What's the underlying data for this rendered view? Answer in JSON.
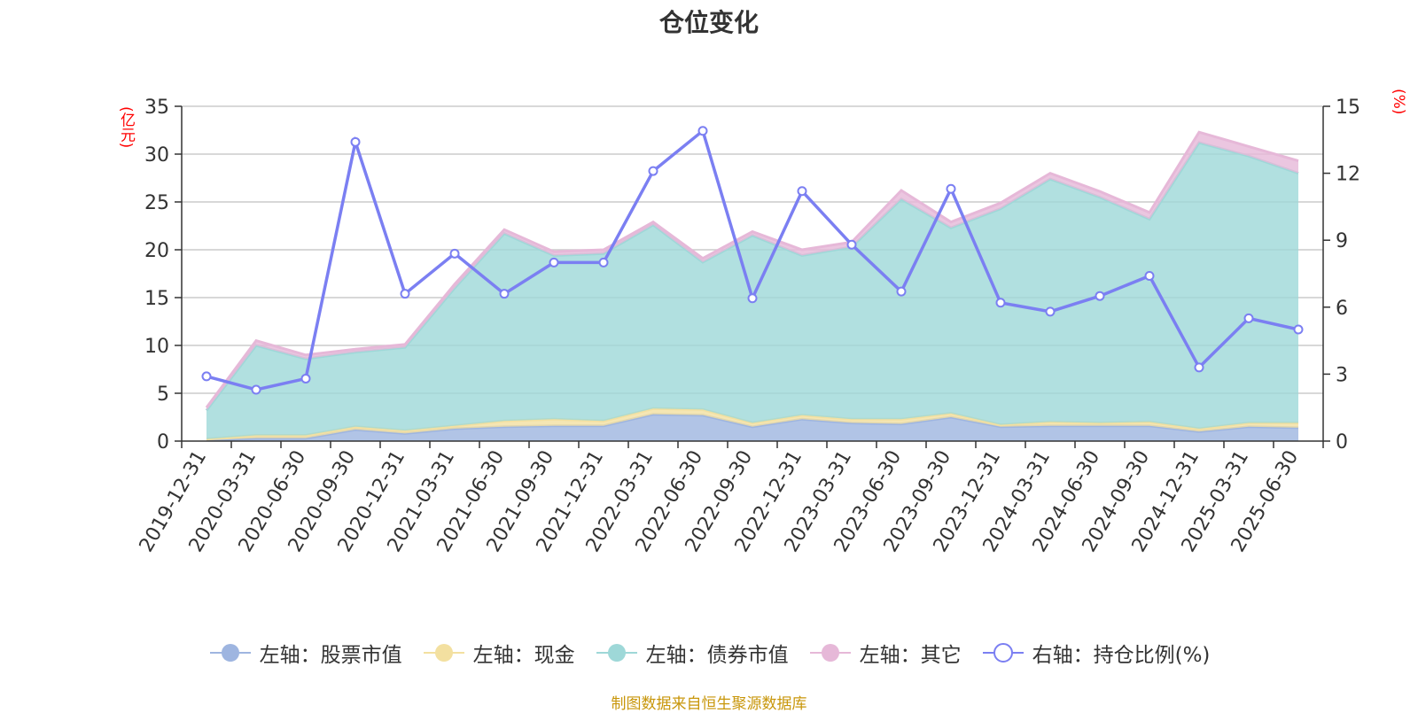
{
  "chart_data": {
    "type": "area",
    "title": "仓位变化",
    "left_axis_unit": "(亿元)",
    "right_axis_unit": "(%)",
    "left_ylim": [
      0,
      35
    ],
    "left_ticks": [
      0,
      5,
      10,
      15,
      20,
      25,
      30,
      35
    ],
    "right_ylim": [
      0,
      15
    ],
    "right_ticks": [
      0,
      3,
      6,
      9,
      12,
      15
    ],
    "grid": true,
    "legend_position": "bottom",
    "categories": [
      "2019-12-31",
      "2020-03-31",
      "2020-06-30",
      "2020-09-30",
      "2020-12-31",
      "2021-03-31",
      "2021-06-30",
      "2021-09-30",
      "2021-12-31",
      "2022-03-31",
      "2022-06-30",
      "2022-09-30",
      "2022-12-31",
      "2023-03-31",
      "2023-06-30",
      "2023-09-30",
      "2023-12-31",
      "2024-03-31",
      "2024-06-30",
      "2024-09-30",
      "2024-12-31",
      "2025-03-31",
      "2025-06-30"
    ],
    "series": [
      {
        "name": "左轴：股票市值",
        "axis": "left",
        "kind": "stacked-area",
        "color": "#9eb5e0",
        "values": [
          0.1,
          0.3,
          0.3,
          1.2,
          0.8,
          1.3,
          1.5,
          1.6,
          1.6,
          2.8,
          2.7,
          1.5,
          2.3,
          1.9,
          1.8,
          2.5,
          1.5,
          1.6,
          1.6,
          1.6,
          1.0,
          1.5,
          1.4
        ]
      },
      {
        "name": "左轴：现金",
        "axis": "left",
        "kind": "stacked-area",
        "color": "#f3e0a0",
        "values": [
          0.1,
          0.3,
          0.3,
          0.3,
          0.3,
          0.3,
          0.6,
          0.7,
          0.5,
          0.6,
          0.6,
          0.4,
          0.4,
          0.4,
          0.5,
          0.4,
          0.2,
          0.4,
          0.3,
          0.4,
          0.3,
          0.4,
          0.5
        ]
      },
      {
        "name": "左轴：债券市值",
        "axis": "left",
        "kind": "stacked-area",
        "color": "#9ed8d8",
        "values": [
          3.0,
          9.4,
          8.0,
          7.8,
          8.7,
          14.4,
          19.6,
          17.1,
          17.5,
          19.2,
          15.4,
          19.6,
          16.7,
          18.0,
          23.0,
          19.4,
          22.6,
          25.4,
          23.6,
          21.2,
          29.9,
          27.9,
          26.1
        ]
      },
      {
        "name": "左轴：其它",
        "axis": "left",
        "kind": "stacked-area",
        "color": "#e6b8d8",
        "values": [
          0.3,
          0.5,
          0.4,
          0.3,
          0.3,
          0.4,
          0.4,
          0.4,
          0.4,
          0.3,
          0.4,
          0.4,
          0.6,
          0.5,
          0.9,
          0.6,
          0.6,
          0.6,
          0.6,
          0.7,
          1.1,
          1.0,
          1.3
        ]
      },
      {
        "name": "右轴：持仓比例(%)",
        "axis": "right",
        "kind": "line",
        "color": "#7b7ff2",
        "values": [
          2.9,
          2.3,
          2.8,
          13.4,
          6.6,
          8.4,
          6.6,
          8.0,
          8.0,
          12.1,
          13.9,
          6.4,
          11.2,
          8.8,
          6.7,
          11.3,
          6.2,
          5.8,
          6.5,
          7.4,
          3.3,
          5.5,
          5.0
        ]
      }
    ]
  },
  "footer": "制图数据来自恒生聚源数据库"
}
